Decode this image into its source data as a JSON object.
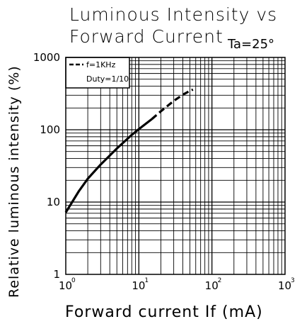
{
  "chart_data": {
    "type": "line",
    "title_line1": "Luminous Intensity vs",
    "title_line2": "Forward Current",
    "condition": "Ta=25°",
    "xlabel": "Forward current If (mA)",
    "ylabel": "Relative luminous intensity (%)",
    "x_scale": "log",
    "y_scale": "log",
    "xlim": [
      1,
      1000
    ],
    "ylim": [
      1,
      1000
    ],
    "x_ticks": [
      {
        "base": "10",
        "exp": "0"
      },
      {
        "base": "10",
        "exp": "1"
      },
      {
        "base": "10",
        "exp": "2"
      },
      {
        "base": "10",
        "exp": "3"
      }
    ],
    "y_ticks": [
      "1",
      "10",
      "100",
      "1000"
    ],
    "grid": true,
    "legend": {
      "placement": "top-left",
      "line1": "f=1KHz",
      "line2": "Duty=1/10"
    },
    "series": [
      {
        "style": "solid",
        "x": [
          1,
          1.5,
          2,
          3,
          5,
          8,
          10,
          15
        ],
        "y": [
          7.2,
          14,
          21,
          33,
          55,
          85,
          102,
          140
        ]
      },
      {
        "style": "dashed",
        "x": [
          15,
          20,
          30,
          40,
          50,
          55
        ],
        "y": [
          140,
          180,
          250,
          305,
          345,
          360
        ]
      }
    ]
  }
}
